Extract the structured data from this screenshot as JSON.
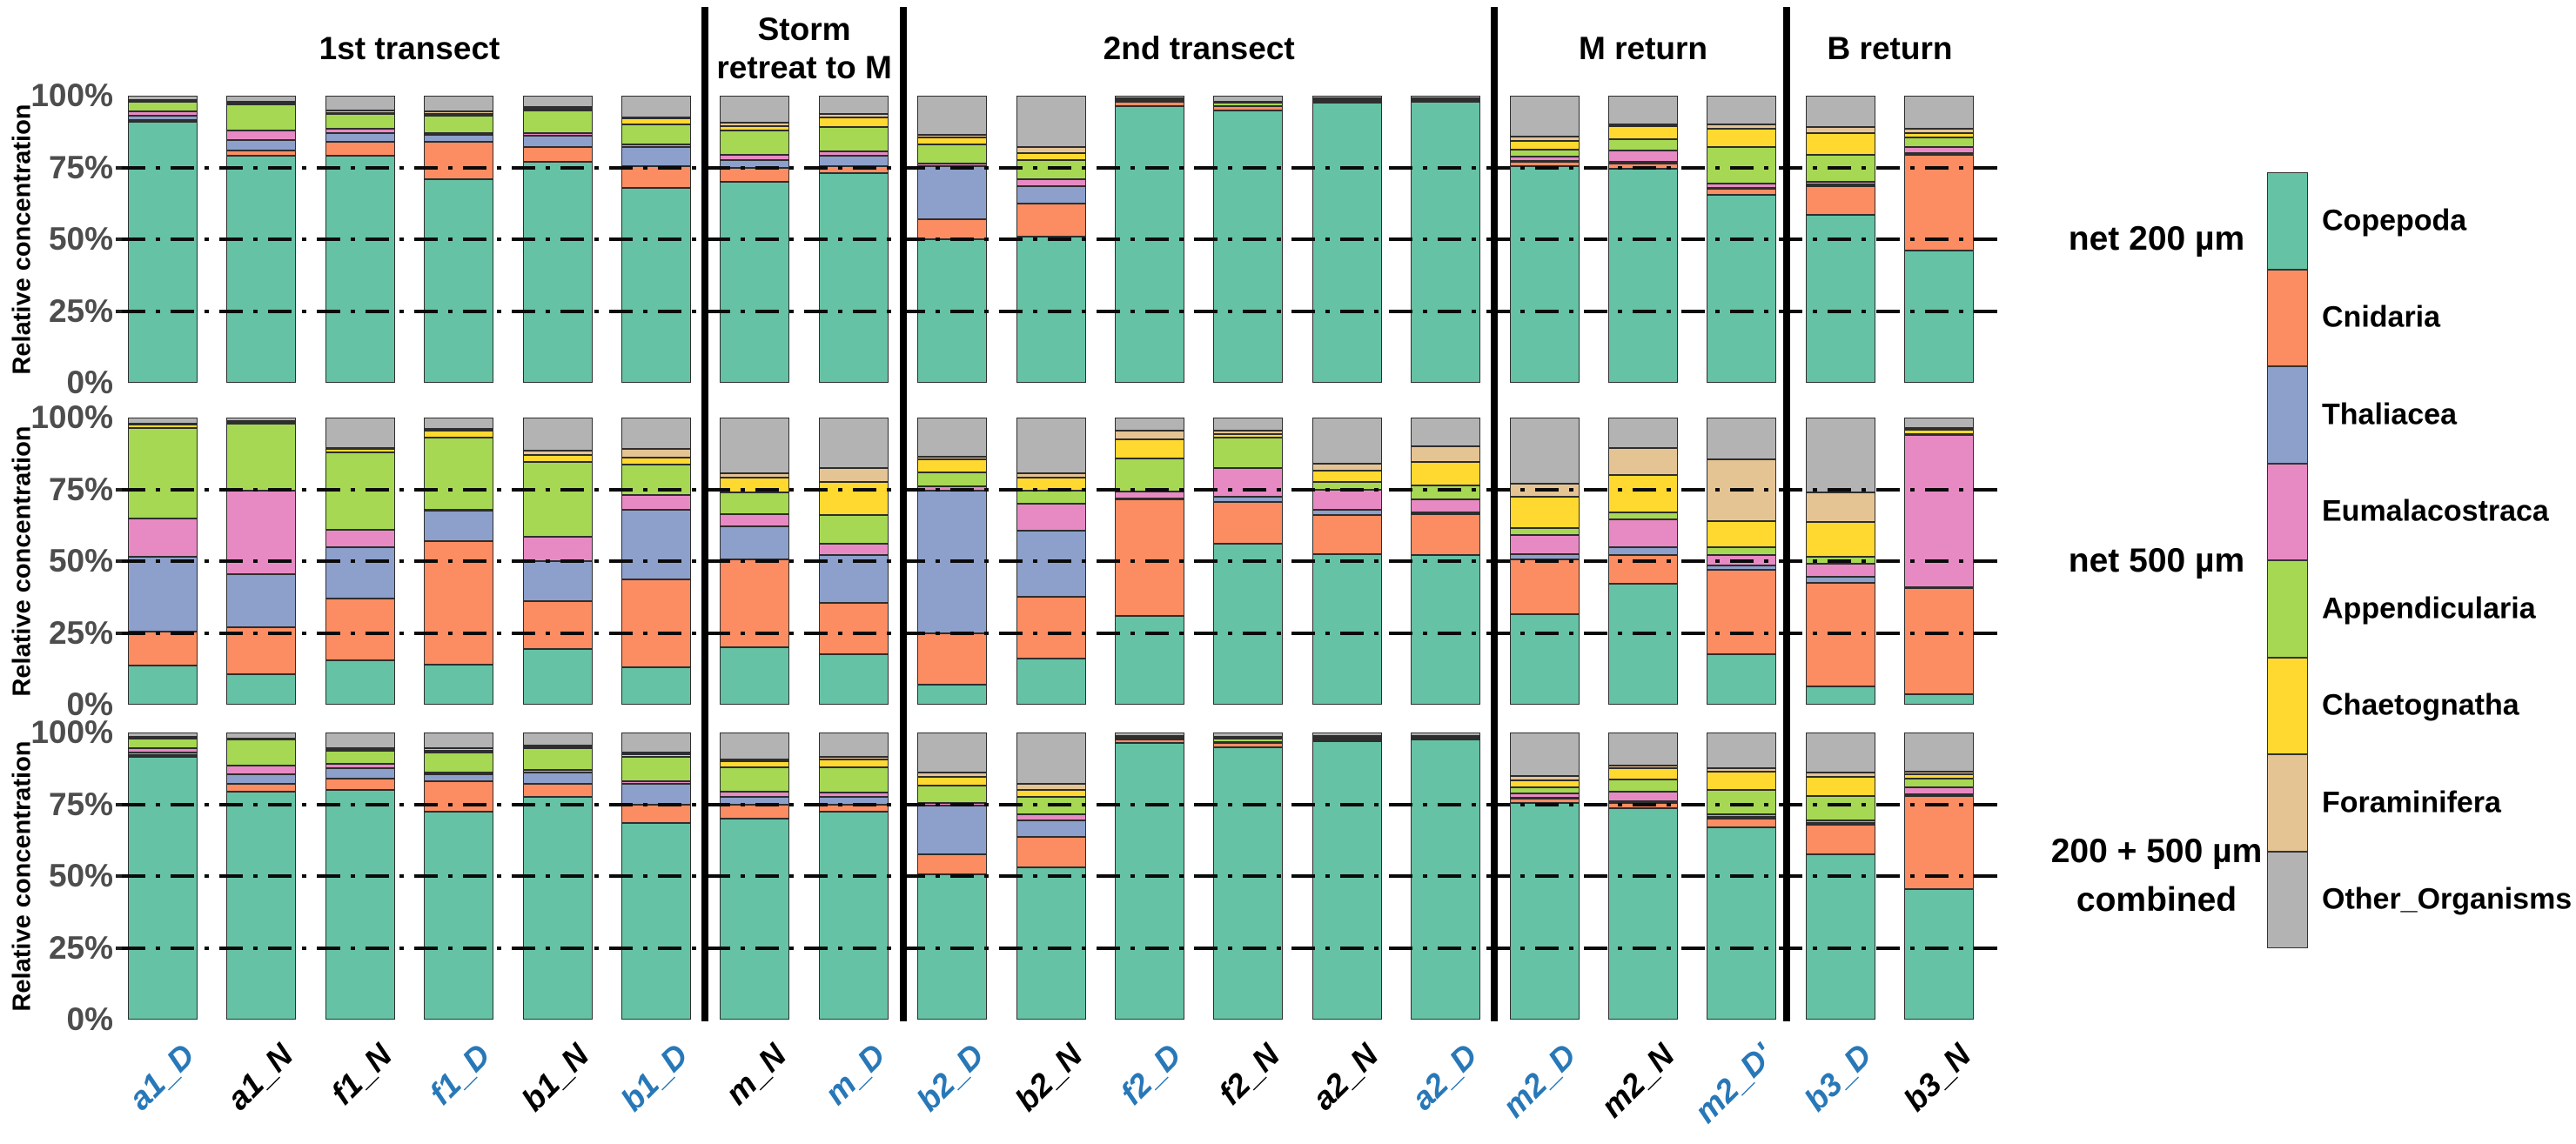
{
  "chart_data": {
    "type": "bar",
    "subtype": "stacked-percentage-columns",
    "title": "",
    "ylabel": "Relative concentration",
    "ytick_labels": [
      "0%",
      "25%",
      "50%",
      "75%",
      "100%"
    ],
    "ylim": [
      0,
      100
    ],
    "gridlines_pct": [
      25,
      50,
      75
    ],
    "grid": "dashed horizontal at 25/50/75, drawn over bars",
    "legend_position": "right",
    "series": [
      {
        "name": "Copepoda",
        "color": "#66C2A5"
      },
      {
        "name": "Cnidaria",
        "color": "#FC8D62"
      },
      {
        "name": "Thaliacea",
        "color": "#8DA0CB"
      },
      {
        "name": "Eumalacostraca",
        "color": "#E78AC3"
      },
      {
        "name": "Appendicularia",
        "color": "#A6D854"
      },
      {
        "name": "Chaetognatha",
        "color": "#FFD92F"
      },
      {
        "name": "Foraminifera",
        "color": "#E5C494"
      },
      {
        "name": "Other_Organisms",
        "color": "#B3B3B3"
      }
    ],
    "x_categories": [
      {
        "label": "a1_D",
        "period": "day"
      },
      {
        "label": "a1_N",
        "period": "night"
      },
      {
        "label": "f1_N",
        "period": "night"
      },
      {
        "label": "f1_D",
        "period": "day"
      },
      {
        "label": "b1_N",
        "period": "night"
      },
      {
        "label": "b1_D",
        "period": "day"
      },
      {
        "label": "m_N",
        "period": "night"
      },
      {
        "label": "m_D",
        "period": "day"
      },
      {
        "label": "b2_D",
        "period": "day"
      },
      {
        "label": "b2_N",
        "period": "night"
      },
      {
        "label": "f2_D",
        "period": "day"
      },
      {
        "label": "f2_N",
        "period": "night"
      },
      {
        "label": "a2_N",
        "period": "night"
      },
      {
        "label": "a2_D",
        "period": "day"
      },
      {
        "label": "m2_D",
        "period": "day"
      },
      {
        "label": "m2_N",
        "period": "night"
      },
      {
        "label": "m2_D'",
        "period": "day"
      },
      {
        "label": "b3_D",
        "period": "day"
      },
      {
        "label": "b3_N",
        "period": "night"
      }
    ],
    "label_colors": {
      "day": "#2878B8",
      "night": "#000000"
    },
    "sections": [
      {
        "lines": [
          "1st transect"
        ],
        "from": 0,
        "to": 5
      },
      {
        "lines": [
          "Storm",
          "retreat to M"
        ],
        "from": 6,
        "to": 7
      },
      {
        "lines": [
          "2nd transect"
        ],
        "from": 8,
        "to": 13
      },
      {
        "lines": [
          "M return"
        ],
        "from": 14,
        "to": 16
      },
      {
        "lines": [
          "B return"
        ],
        "from": 17,
        "to": 18
      }
    ],
    "panels": [
      {
        "row_label_lines": [
          "net 200 µm"
        ],
        "values_order": "Copepoda, Cnidaria, Thaliacea, Eumalacostraca, Appendicularia, Chaetognatha, Foraminifera, Other_Organisms (percent, bottom to top)",
        "values": [
          [
            91,
            0.5,
            1.5,
            1.5,
            3.5,
            0.3,
            0.2,
            1.5
          ],
          [
            79,
            2,
            3.5,
            3.5,
            9,
            0.5,
            0.5,
            2
          ],
          [
            79,
            5,
            3,
            1.5,
            5,
            0.5,
            1,
            5
          ],
          [
            71,
            13,
            2.5,
            0.5,
            6,
            0.5,
            1,
            5.5
          ],
          [
            77,
            5,
            4,
            1,
            8,
            0.5,
            0.5,
            4
          ],
          [
            68,
            7.5,
            6.5,
            1,
            7,
            2,
            0.5,
            7.5
          ],
          [
            70,
            5,
            2.5,
            2,
            8.5,
            1.5,
            1,
            9.5
          ],
          [
            73,
            2.5,
            3.5,
            1.5,
            8.5,
            3.5,
            1,
            6.5
          ],
          [
            50,
            7,
            18.5,
            1,
            6.5,
            2.5,
            1,
            13.5
          ],
          [
            51,
            11.5,
            6,
            2.5,
            6.5,
            2.5,
            2,
            18
          ],
          [
            96.5,
            1.3,
            0.1,
            0.1,
            0.5,
            0.3,
            0.2,
            1
          ],
          [
            95,
            1.3,
            0.1,
            0.1,
            1,
            0.2,
            0.3,
            2
          ],
          [
            97.7,
            0.3,
            0.1,
            0.1,
            0.1,
            0.2,
            0.7,
            0.8
          ],
          [
            97.8,
            0.2,
            0.1,
            0.1,
            0.5,
            0.1,
            0.2,
            1
          ],
          [
            75.5,
            1.5,
            0.3,
            1.5,
            2.5,
            3,
            1.5,
            14.2
          ],
          [
            74.5,
            2,
            0.5,
            4,
            4,
            4.5,
            0.5,
            10
          ],
          [
            65.5,
            2,
            0.5,
            1.5,
            12.5,
            6.5,
            1.5,
            10
          ],
          [
            58.5,
            10,
            0.5,
            1,
            9.5,
            7.5,
            2,
            11
          ],
          [
            46,
            33.5,
            0.5,
            2,
            3.5,
            1.5,
            1.5,
            11.5
          ]
        ]
      },
      {
        "row_label_lines": [
          "net 500 µm"
        ],
        "values": [
          [
            13.5,
            12,
            26,
            13.5,
            31.5,
            1,
            0.5,
            2
          ],
          [
            10.5,
            16.5,
            18.5,
            29,
            23.5,
            0.5,
            0.3,
            1.2
          ],
          [
            15.5,
            21.5,
            18,
            6,
            27,
            1,
            0.5,
            10.5
          ],
          [
            14,
            43,
            10.5,
            0.5,
            25,
            2.5,
            0.5,
            4
          ],
          [
            19.5,
            16.5,
            14,
            8.5,
            26,
            2.5,
            1.5,
            11.5
          ],
          [
            13,
            30.5,
            24.5,
            5,
            10.5,
            2.5,
            3,
            11
          ],
          [
            20,
            30.5,
            11.5,
            4.5,
            7.5,
            5,
            1.5,
            19.5
          ],
          [
            17.5,
            18,
            16.5,
            4,
            10,
            11.5,
            5,
            17.5
          ],
          [
            7,
            18,
            49.5,
            1.5,
            5,
            4.5,
            1,
            13.5
          ],
          [
            16,
            21.5,
            23,
            9.5,
            4.5,
            4.5,
            1.5,
            19.5
          ],
          [
            31,
            40.5,
            0.2,
            2.6,
            11.5,
            6.5,
            3.2,
            4.5
          ],
          [
            56,
            14.5,
            2,
            10,
            10.5,
            1.3,
            1.2,
            4.5
          ],
          [
            52.5,
            13.5,
            2,
            7,
            2.5,
            4,
            2.5,
            16
          ],
          [
            52,
            14.5,
            0.5,
            4.5,
            5,
            8,
            5.5,
            10
          ],
          [
            31.5,
            19,
            2,
            6.5,
            2.5,
            11,
            4.5,
            23
          ],
          [
            42,
            10,
            3,
            9.5,
            2.5,
            13,
            9.5,
            10.5
          ],
          [
            17.5,
            29.5,
            1.5,
            3.5,
            3,
            9,
            21.5,
            14.5
          ],
          [
            6.5,
            36,
            2,
            4.5,
            2.5,
            12,
            10.5,
            26
          ],
          [
            3.5,
            37,
            0.5,
            53,
            0.3,
            1.5,
            0.5,
            3.7
          ]
        ]
      },
      {
        "row_label_lines": [
          "200 + 500 µm",
          "combined"
        ],
        "values": [
          [
            91.5,
            0.5,
            1,
            1.5,
            3.5,
            0.3,
            0.2,
            1.5
          ],
          [
            79.5,
            2.5,
            3.5,
            3,
            9,
            0.3,
            0.2,
            2
          ],
          [
            80,
            4,
            3.5,
            1.5,
            4.5,
            0.5,
            0.5,
            5.5
          ],
          [
            72.5,
            10.5,
            2.5,
            0.5,
            7,
            0.5,
            1,
            5.5
          ],
          [
            77.5,
            4.5,
            4,
            1,
            7.5,
            0.5,
            0.5,
            4.5
          ],
          [
            68.5,
            6.5,
            7,
            1,
            8.5,
            1,
            0.5,
            7
          ],
          [
            70,
            5,
            2.5,
            2,
            8.5,
            2,
            0.5,
            9.5
          ],
          [
            72.5,
            2.5,
            2.5,
            1.5,
            9,
            2.5,
            1,
            8.5
          ],
          [
            50.5,
            7,
            17,
            1,
            6,
            3,
            1.5,
            14
          ],
          [
            53,
            10.5,
            6,
            2,
            6,
            2.5,
            2,
            18
          ],
          [
            96.5,
            1,
            0.1,
            0.2,
            0.4,
            0.3,
            0.3,
            1.2
          ],
          [
            95,
            1.5,
            0.1,
            0.2,
            1.2,
            0.2,
            0.3,
            1.5
          ],
          [
            97,
            0.3,
            0.1,
            0.2,
            0.4,
            0.3,
            0.5,
            1.2
          ],
          [
            97.5,
            0.2,
            0.1,
            0.1,
            0.4,
            0.1,
            0.3,
            1.3
          ],
          [
            75.5,
            1.5,
            0.3,
            1.5,
            2,
            2.5,
            1.7,
            15
          ],
          [
            73.5,
            2,
            0.5,
            3.5,
            4,
            4,
            1,
            11.5
          ],
          [
            67,
            3,
            0.5,
            1,
            8.5,
            6.5,
            1,
            12.5
          ],
          [
            57.5,
            10.5,
            0.5,
            1,
            8.5,
            6.5,
            1.5,
            14
          ],
          [
            45.5,
            32.5,
            0.5,
            2.5,
            3,
            1.5,
            1,
            13.5
          ]
        ]
      }
    ]
  }
}
